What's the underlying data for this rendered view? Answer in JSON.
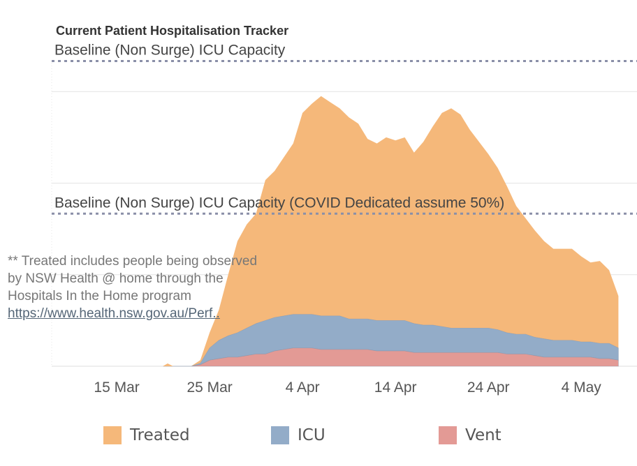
{
  "title": "Current Patient Hospitalisation Tracker",
  "note": {
    "text": "** Treated includes people being observed by NSW Health @ home through the Hospitals In the Home program",
    "link": "https://www.health.nsw.gov.au/Perf.."
  },
  "colors": {
    "treated": "#f5b87a",
    "icu": "#93acc8",
    "vent": "#e39a95",
    "ref_line": "#8a8fa8",
    "grid": "#e4e4e4"
  },
  "chart_data": {
    "type": "area",
    "stacked": true,
    "x_ticks": [
      "15 Mar",
      "25 Mar",
      "4 Apr",
      "14 Apr",
      "24 Apr",
      "4 May"
    ],
    "x_range": [
      "2020-03-08",
      "2020-05-10"
    ],
    "y_range": [
      0,
      1200
    ],
    "reference_lines": [
      {
        "label": "Baseline (Non Surge) ICU Capacity",
        "value": 1000
      },
      {
        "label": "Baseline (Non Surge) ICU Capacity (COVID Dedicated assume 50%)",
        "value": 500
      }
    ],
    "x": [
      "2020-03-20",
      "2020-03-21",
      "2020-03-22",
      "2020-03-23",
      "2020-03-24",
      "2020-03-25",
      "2020-03-26",
      "2020-03-27",
      "2020-03-28",
      "2020-03-29",
      "2020-03-30",
      "2020-03-31",
      "2020-04-01",
      "2020-04-02",
      "2020-04-03",
      "2020-04-04",
      "2020-04-05",
      "2020-04-06",
      "2020-04-07",
      "2020-04-08",
      "2020-04-09",
      "2020-04-10",
      "2020-04-11",
      "2020-04-12",
      "2020-04-13",
      "2020-04-14",
      "2020-04-15",
      "2020-04-16",
      "2020-04-17",
      "2020-04-18",
      "2020-04-19",
      "2020-04-20",
      "2020-04-21",
      "2020-04-22",
      "2020-04-23",
      "2020-04-24",
      "2020-04-25",
      "2020-04-26",
      "2020-04-27",
      "2020-04-28",
      "2020-04-29",
      "2020-04-30",
      "2020-05-01",
      "2020-05-02",
      "2020-05-03",
      "2020-05-04",
      "2020-05-05",
      "2020-05-06",
      "2020-05-07",
      "2020-05-08"
    ],
    "series": [
      {
        "name": "Treated",
        "values": [
          0,
          0,
          0,
          0,
          10,
          50,
          100,
          200,
          300,
          340,
          360,
          460,
          480,
          520,
          560,
          660,
          690,
          720,
          700,
          680,
          660,
          640,
          590,
          580,
          600,
          590,
          600,
          560,
          600,
          650,
          700,
          720,
          700,
          650,
          610,
          570,
          530,
          480,
          420,
          380,
          350,
          320,
          300,
          300,
          300,
          280,
          260,
          270,
          240,
          170
        ]
      },
      {
        "name": "ICU",
        "values": [
          0,
          0,
          0,
          0,
          5,
          40,
          60,
          70,
          80,
          90,
          100,
          110,
          110,
          110,
          110,
          110,
          110,
          110,
          110,
          110,
          100,
          100,
          100,
          100,
          100,
          100,
          100,
          95,
          90,
          90,
          85,
          80,
          80,
          80,
          80,
          80,
          75,
          70,
          65,
          65,
          60,
          60,
          55,
          55,
          55,
          50,
          50,
          50,
          50,
          40
        ]
      },
      {
        "name": "Vent",
        "values": [
          0,
          0,
          0,
          0,
          5,
          20,
          25,
          30,
          30,
          35,
          40,
          40,
          50,
          55,
          60,
          60,
          60,
          55,
          55,
          55,
          55,
          55,
          55,
          50,
          50,
          50,
          50,
          45,
          45,
          45,
          45,
          45,
          45,
          45,
          45,
          45,
          45,
          40,
          40,
          40,
          35,
          30,
          30,
          30,
          30,
          30,
          30,
          25,
          25,
          20
        ]
      }
    ],
    "pre_values_note": "",
    "legend_position": "bottom"
  }
}
